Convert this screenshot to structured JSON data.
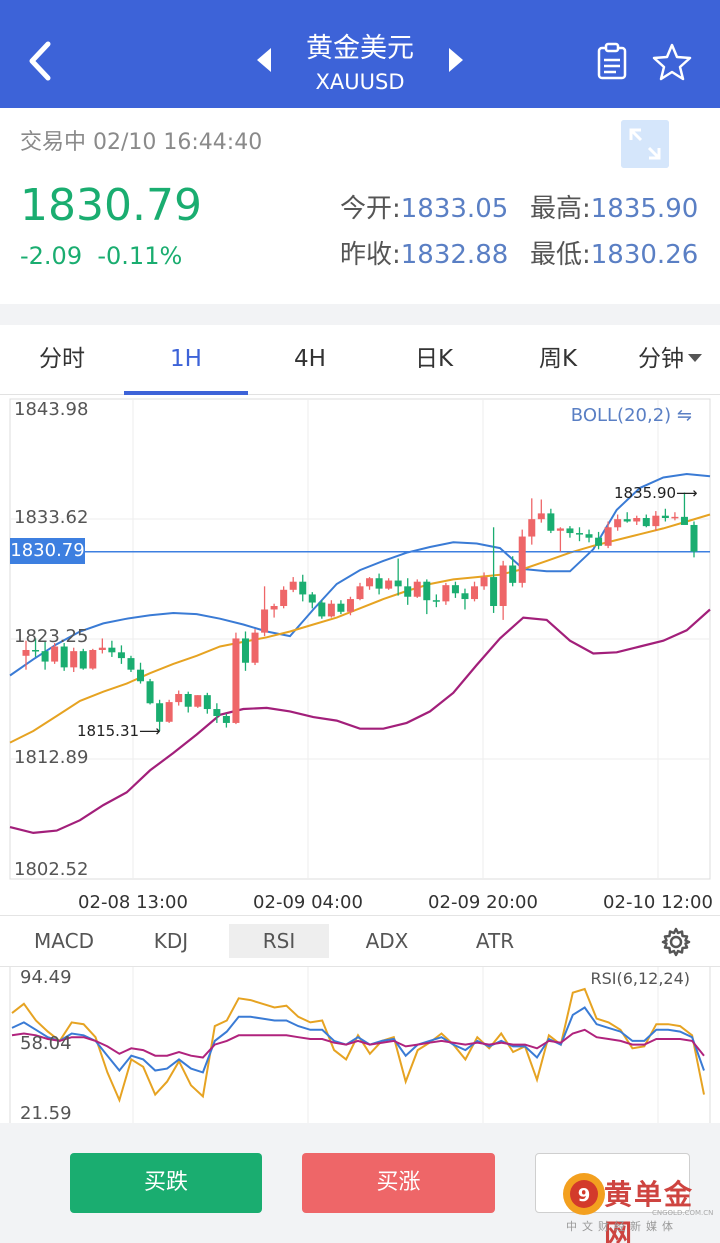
{
  "header": {
    "title": "黄金美元",
    "symbol": "XAUUSD"
  },
  "quote": {
    "status": "交易中 02/10 16:44:40",
    "last": "1830.79",
    "change": "-2.09",
    "change_pct": "-0.11%",
    "open_label": "今开:",
    "open": "1833.05",
    "high_label": "最高:",
    "high": "1835.90",
    "prev_label": "昨收:",
    "prev_close": "1832.88",
    "low_label": "最低:",
    "low": "1830.26",
    "colors": {
      "down": "#1aad70",
      "up": "#ee6668",
      "accent": "#3d63d8"
    }
  },
  "timeframes": [
    {
      "label": "分时",
      "active": false
    },
    {
      "label": "1H",
      "active": true
    },
    {
      "label": "4H",
      "active": false
    },
    {
      "label": "日K",
      "active": false
    },
    {
      "label": "周K",
      "active": false
    },
    {
      "label": "分钟",
      "active": false
    }
  ],
  "indicators": [
    {
      "label": "MACD",
      "active": false
    },
    {
      "label": "KDJ",
      "active": false
    },
    {
      "label": "RSI",
      "active": true
    },
    {
      "label": "ADX",
      "active": false
    },
    {
      "label": "ATR",
      "active": false
    }
  ],
  "chart_data": [
    {
      "type": "candlestick",
      "title": "",
      "overlay_label": "BOLL(20,2)",
      "y_ticks": [
        "1843.98",
        "1833.62",
        "1823.25",
        "1812.89",
        "1802.52"
      ],
      "ylim": [
        1802.52,
        1843.98
      ],
      "x_ticks": [
        "02-08 13:00",
        "02-09 04:00",
        "02-09 20:00",
        "02-10 12:00"
      ],
      "current_price": "1830.79",
      "annotations": {
        "high": "1835.90",
        "low": "1815.31"
      },
      "candles": [
        [
          1821.8,
          1823.1,
          1820.6,
          1822.3
        ],
        [
          1822.3,
          1823.3,
          1821.7,
          1822.2
        ],
        [
          1822.2,
          1823.0,
          1820.6,
          1821.3
        ],
        [
          1821.3,
          1822.9,
          1821.1,
          1822.6
        ],
        [
          1822.6,
          1822.9,
          1820.5,
          1820.8
        ],
        [
          1820.8,
          1822.5,
          1820.4,
          1822.2
        ],
        [
          1822.2,
          1822.4,
          1820.6,
          1820.7
        ],
        [
          1820.7,
          1822.4,
          1820.6,
          1822.3
        ],
        [
          1822.3,
          1823.3,
          1822.0,
          1822.5
        ],
        [
          1822.5,
          1823.1,
          1821.7,
          1822.1
        ],
        [
          1822.1,
          1822.7,
          1821.1,
          1821.6
        ],
        [
          1821.6,
          1821.8,
          1820.4,
          1820.6
        ],
        [
          1820.6,
          1821.2,
          1819.4,
          1819.6
        ],
        [
          1819.6,
          1819.8,
          1817.6,
          1817.7
        ],
        [
          1817.7,
          1818.0,
          1815.3,
          1816.1
        ],
        [
          1816.1,
          1818.0,
          1816.0,
          1817.8
        ],
        [
          1817.8,
          1818.8,
          1817.5,
          1818.5
        ],
        [
          1818.5,
          1818.7,
          1816.9,
          1817.4
        ],
        [
          1817.4,
          1818.4,
          1817.3,
          1818.4
        ],
        [
          1818.4,
          1818.6,
          1816.8,
          1817.2
        ],
        [
          1817.2,
          1817.7,
          1816.0,
          1816.6
        ],
        [
          1816.6,
          1816.8,
          1815.6,
          1816.0
        ],
        [
          1816.0,
          1823.8,
          1815.9,
          1823.3
        ],
        [
          1823.3,
          1823.9,
          1820.5,
          1821.2
        ],
        [
          1821.2,
          1824.1,
          1821.0,
          1823.8
        ],
        [
          1823.8,
          1827.8,
          1823.5,
          1825.8
        ],
        [
          1825.8,
          1826.3,
          1825.1,
          1826.1
        ],
        [
          1826.1,
          1827.8,
          1825.9,
          1827.5
        ],
        [
          1827.5,
          1828.6,
          1827.3,
          1828.2
        ],
        [
          1828.2,
          1828.8,
          1826.5,
          1827.1
        ],
        [
          1827.1,
          1827.3,
          1825.9,
          1826.4
        ],
        [
          1826.4,
          1826.6,
          1825.0,
          1825.2
        ],
        [
          1825.2,
          1826.6,
          1825.1,
          1826.3
        ],
        [
          1826.3,
          1826.6,
          1825.4,
          1825.6
        ],
        [
          1825.6,
          1826.9,
          1825.3,
          1826.7
        ],
        [
          1826.7,
          1828.1,
          1826.6,
          1827.8
        ],
        [
          1827.8,
          1828.6,
          1827.5,
          1828.5
        ],
        [
          1828.5,
          1828.9,
          1827.1,
          1827.6
        ],
        [
          1827.6,
          1828.5,
          1827.5,
          1828.3
        ],
        [
          1828.3,
          1830.2,
          1827.0,
          1827.8
        ],
        [
          1827.8,
          1828.5,
          1826.2,
          1826.9
        ],
        [
          1826.9,
          1828.4,
          1826.8,
          1828.2
        ],
        [
          1828.2,
          1828.4,
          1825.4,
          1826.6
        ],
        [
          1826.6,
          1827.1,
          1826.0,
          1826.5
        ],
        [
          1826.5,
          1828.1,
          1826.2,
          1827.9
        ],
        [
          1827.9,
          1828.2,
          1826.8,
          1827.2
        ],
        [
          1827.2,
          1827.6,
          1825.8,
          1826.7
        ],
        [
          1826.7,
          1828.2,
          1826.5,
          1827.8
        ],
        [
          1827.8,
          1829.0,
          1827.5,
          1828.6
        ],
        [
          1828.6,
          1832.9,
          1825.5,
          1826.1
        ],
        [
          1826.1,
          1830.0,
          1824.9,
          1829.6
        ],
        [
          1829.6,
          1830.4,
          1827.8,
          1828.1
        ],
        [
          1828.1,
          1832.7,
          1827.7,
          1832.1
        ],
        [
          1832.1,
          1835.4,
          1831.4,
          1833.6
        ],
        [
          1833.6,
          1835.3,
          1833.3,
          1834.1
        ],
        [
          1834.1,
          1834.5,
          1832.4,
          1832.6
        ],
        [
          1832.6,
          1832.9,
          1830.8,
          1832.8
        ],
        [
          1832.8,
          1833.0,
          1832.0,
          1832.4
        ],
        [
          1832.4,
          1832.9,
          1831.7,
          1832.3
        ],
        [
          1832.3,
          1832.7,
          1831.6,
          1832.0
        ],
        [
          1832.0,
          1832.5,
          1831.0,
          1831.3
        ],
        [
          1831.3,
          1833.4,
          1831.1,
          1832.9
        ],
        [
          1832.9,
          1834.0,
          1832.6,
          1833.6
        ],
        [
          1833.6,
          1834.2,
          1833.3,
          1833.4
        ],
        [
          1833.4,
          1833.9,
          1833.1,
          1833.7
        ],
        [
          1833.7,
          1834.0,
          1832.9,
          1833.0
        ],
        [
          1833.0,
          1834.3,
          1832.6,
          1833.9
        ],
        [
          1833.9,
          1834.5,
          1833.4,
          1833.7
        ],
        [
          1833.7,
          1834.2,
          1833.5,
          1833.8
        ],
        [
          1833.8,
          1835.9,
          1833.2,
          1833.1
        ],
        [
          1833.1,
          1833.4,
          1830.3,
          1830.8
        ]
      ],
      "boll_upper": [
        1820.1,
        1821.5,
        1822.8,
        1823.9,
        1824.6,
        1825.0,
        1825.3,
        1825.5,
        1825.4,
        1825.0,
        1824.5,
        1823.9,
        1823.5,
        1825.8,
        1828.0,
        1829.2,
        1830.0,
        1830.7,
        1831.2,
        1831.6,
        1831.5,
        1831.1,
        1829.3,
        1829.1,
        1829.1,
        1831.0,
        1834.4,
        1836.3,
        1837.2,
        1837.5,
        1837.3
      ],
      "boll_middle": [
        1814.3,
        1815.3,
        1816.6,
        1817.9,
        1818.7,
        1819.4,
        1820.3,
        1821.1,
        1821.8,
        1822.6,
        1823.0,
        1823.4,
        1823.9,
        1824.5,
        1825.1,
        1825.9,
        1826.7,
        1827.4,
        1828.0,
        1828.4,
        1828.6,
        1828.8,
        1829.3,
        1830.0,
        1830.7,
        1831.3,
        1831.8,
        1832.3,
        1832.8,
        1833.4,
        1834.0
      ],
      "boll_lower": [
        1807.0,
        1806.5,
        1806.7,
        1807.6,
        1808.9,
        1810.0,
        1811.9,
        1813.4,
        1815.0,
        1816.7,
        1817.2,
        1817.3,
        1817.0,
        1816.5,
        1816.2,
        1815.5,
        1815.5,
        1816.0,
        1817.0,
        1818.6,
        1821.0,
        1823.3,
        1825.1,
        1824.9,
        1823.1,
        1822.0,
        1822.1,
        1822.6,
        1823.1,
        1824.0,
        1825.8
      ]
    },
    {
      "type": "line",
      "title": "",
      "label": "RSI(6,12,24)",
      "y_ticks": [
        "94.49",
        "58.04",
        "21.59"
      ],
      "ylim": [
        21.59,
        94.49
      ],
      "rsi6": [
        75,
        80,
        71,
        65,
        60,
        70,
        69,
        62,
        43,
        28,
        50,
        46,
        31,
        38,
        49,
        36,
        30,
        68,
        71,
        83,
        82,
        80,
        78,
        79,
        73,
        70,
        71,
        55,
        50,
        63,
        53,
        60,
        62,
        38,
        55,
        59,
        64,
        58,
        50,
        62,
        56,
        64,
        54,
        57,
        39,
        63,
        58,
        86,
        88,
        72,
        70,
        66,
        56,
        57,
        69,
        69,
        68,
        63,
        31
      ],
      "rsi12": [
        67,
        70,
        66,
        62,
        60,
        64,
        63,
        60,
        52,
        44,
        52,
        50,
        44,
        45,
        50,
        45,
        43,
        60,
        65,
        73,
        73,
        72,
        71,
        71,
        68,
        66,
        66,
        60,
        58,
        62,
        58,
        60,
        61,
        52,
        58,
        60,
        62,
        58,
        55,
        60,
        57,
        60,
        57,
        57,
        51,
        61,
        58,
        74,
        78,
        69,
        67,
        65,
        60,
        60,
        66,
        66,
        65,
        62,
        44
      ],
      "rsi24": [
        63,
        64,
        63,
        61,
        60,
        62,
        62,
        60,
        57,
        53,
        56,
        55,
        52,
        52,
        54,
        52,
        51,
        58,
        60,
        63,
        63,
        63,
        63,
        63,
        62,
        61,
        61,
        59,
        58,
        60,
        58,
        59,
        60,
        57,
        58,
        59,
        60,
        59,
        58,
        59,
        58,
        59,
        58,
        58,
        56,
        60,
        59,
        64,
        66,
        62,
        61,
        60,
        58,
        58,
        61,
        61,
        61,
        60,
        52
      ],
      "colors": {
        "rsi6": "#e6a322",
        "rsi12": "#3a7bd5",
        "rsi24": "#b0237d",
        "boll_upper": "#3a7bd5",
        "boll_middle": "#e6a322",
        "boll_lower": "#a21f7a"
      }
    }
  ],
  "actions": {
    "sell": "买跌",
    "buy": "买涨"
  },
  "watermark": {
    "brand": "黄单金网",
    "sub": "中文财经新媒体",
    "url": "CNGOLD.COM.CN"
  }
}
